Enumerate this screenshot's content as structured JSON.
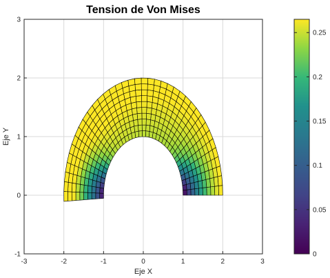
{
  "chart_data": {
    "type": "heatmap",
    "title": "Tension de Von Mises",
    "xlabel": "Eje X",
    "ylabel": "Eje Y",
    "xlim": [
      -3,
      3
    ],
    "ylim": [
      -1,
      3
    ],
    "xticks": [
      "-3",
      "-2",
      "-1",
      "0",
      "1",
      "2",
      "3"
    ],
    "yticks": [
      "-1",
      "0",
      "1",
      "2",
      "3"
    ],
    "grid": true,
    "mesh": {
      "shape": "half-annulus",
      "inner_radius": 1,
      "outer_radius": 2,
      "angle_start_deg": 0,
      "angle_end_deg": 183,
      "radial_divisions": 10,
      "angular_divisions": 38
    },
    "colorbar": {
      "colormap": "viridis",
      "range": [
        0,
        0.265
      ],
      "ticks": [
        "0",
        "0.05",
        "0.1",
        "0.15",
        "0.2",
        "0.25"
      ],
      "placement": "right"
    },
    "field_summary": {
      "min_location": "near (-1, 0) and (1, 0) inner corners",
      "max_location": "outer arc, upper left",
      "approx_min": 0.0,
      "approx_max": 0.265
    },
    "colors": {
      "edge": "#000000",
      "grid": "#d9d9d9",
      "axis": "#262626"
    }
  }
}
